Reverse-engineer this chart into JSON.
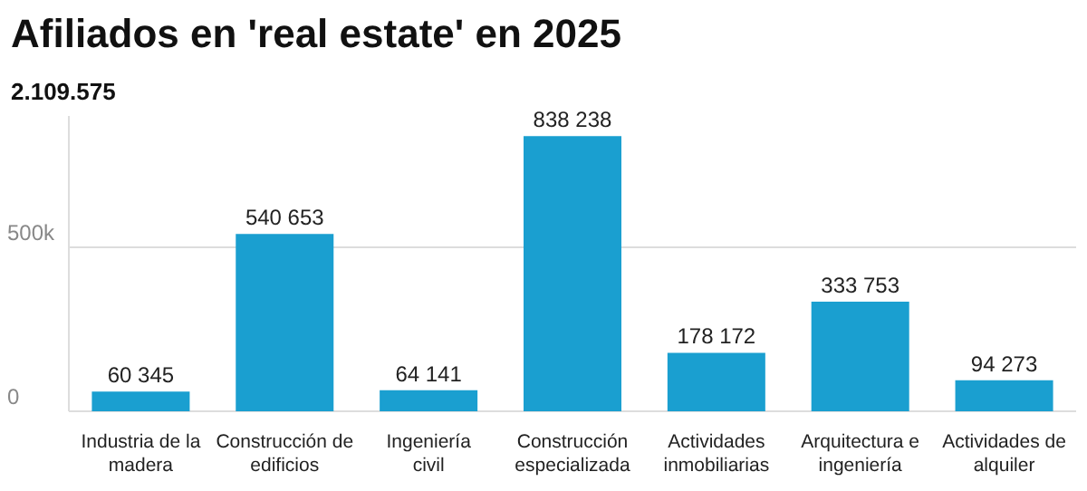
{
  "chart_data": {
    "type": "bar",
    "title": "Afiliados en 'real estate' en 2025",
    "subtitle": "2.109.575",
    "categories": [
      "Industria de la madera",
      "Construcción de edificios",
      "Ingeniería civil",
      "Construcción especializada",
      "Actividades inmobiliarias",
      "Arquitectura e ingeniería",
      "Actividades de alquiler"
    ],
    "values": [
      60345,
      540653,
      64141,
      838238,
      178172,
      333753,
      94273
    ],
    "value_labels": [
      "60 345",
      "540 653",
      "64 141",
      "838 238",
      "178 172",
      "333 753",
      "94 273"
    ],
    "color": "#1a9fd0",
    "ylim": [
      0,
      900000
    ],
    "yticks": [
      {
        "value": 0,
        "label": "0"
      },
      {
        "value": 500000,
        "label": "500k"
      }
    ],
    "grid": "y"
  }
}
